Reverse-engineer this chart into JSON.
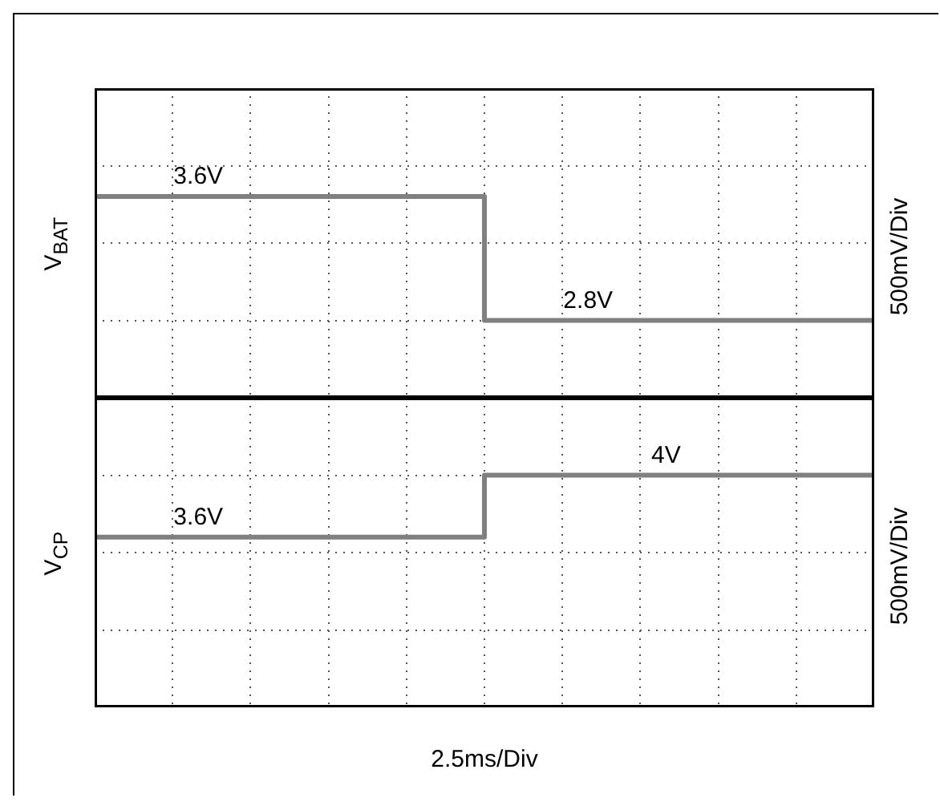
{
  "chart_data": [
    {
      "type": "step",
      "ylabel": "V$_{BAT}$",
      "y2label": "500mV/Div",
      "categories": [
        null,
        null,
        null,
        null,
        null,
        null,
        null,
        null,
        null,
        null,
        null
      ],
      "series": [
        {
          "color": "#808080",
          "values": [
            3.6,
            3.6,
            3.6,
            3.6,
            3.6,
            3.6,
            2.8,
            2.8,
            2.8,
            2.8,
            2.8
          ],
          "value_labels": [
            null,
            "3.6V",
            null,
            null,
            null,
            null,
            "2.8V",
            null,
            null,
            null,
            null
          ]
        }
      ],
      "ylim": [
        2.3,
        4.3
      ],
      "yticks": [
        {
          "value": 2.3,
          "label": null
        },
        {
          "value": 2.8,
          "label": null
        },
        {
          "value": 3.3,
          "label": null
        },
        {
          "value": 3.8,
          "label": null
        },
        {
          "value": 4.3,
          "label": null
        }
      ],
      "grid": true,
      "marker": "none",
      "line_style": "solid",
      "tick_labels": false
    },
    {
      "type": "step",
      "ylabel": "V$_{CP}$",
      "y2label": "500mV/Div",
      "xlabel": "2.5ms/Div",
      "categories": [
        null,
        null,
        null,
        null,
        null,
        null,
        null,
        null,
        null,
        null,
        null
      ],
      "series": [
        {
          "color": "#808080",
          "values": [
            3.6,
            3.6,
            3.6,
            3.6,
            3.6,
            3.6,
            4.0,
            4.0,
            4.0,
            4.0,
            4.0
          ],
          "value_labels": [
            null,
            "3.6V",
            null,
            null,
            null,
            null,
            null,
            "4V",
            null,
            null,
            null
          ]
        }
      ],
      "ylim": [
        2.5,
        4.5
      ],
      "yticks": [
        {
          "value": 2.5,
          "label": null
        },
        {
          "value": 3.0,
          "label": null
        },
        {
          "value": 3.5,
          "label": null
        },
        {
          "value": 4.0,
          "label": null
        },
        {
          "value": 4.5,
          "label": null
        }
      ],
      "grid": true,
      "marker": "none",
      "line_style": "solid",
      "tick_labels": false
    }
  ]
}
